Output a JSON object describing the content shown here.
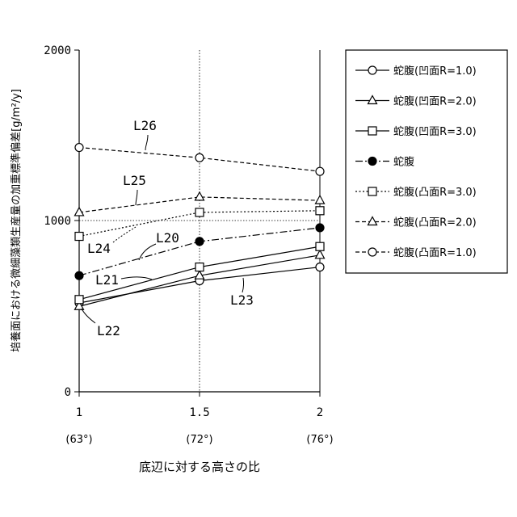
{
  "chart_data": {
    "type": "line",
    "xlabel": "底辺に対する高さの比",
    "ylabel": "培養面における微細藻類生産量の加重標準偏差[g/m²/y]",
    "x": [
      1,
      1.5,
      2
    ],
    "x_tick_labels": [
      "1",
      "1.5",
      "2"
    ],
    "x_sub_labels": [
      "(63°)",
      "(72°)",
      "(76°)"
    ],
    "y_ticks": [
      0,
      1000,
      2000
    ],
    "y_tick_labels": [
      "0",
      "1000",
      "2000"
    ],
    "xlim": [
      1,
      2
    ],
    "ylim": [
      0,
      2000
    ],
    "grid": {
      "vertical_at": 1.5,
      "horizontal_at": 1000
    },
    "legend_position": "right",
    "series": [
      {
        "name": "蛇腹(凹面R=1.0)",
        "marker": "circle-open",
        "line": "solid",
        "values": [
          520,
          650,
          730
        ]
      },
      {
        "name": "蛇腹(凹面R=2.0)",
        "marker": "triangle-open",
        "line": "solid",
        "values": [
          500,
          680,
          800
        ]
      },
      {
        "name": "蛇腹(凹面R=3.0)",
        "marker": "square-open",
        "line": "solid",
        "values": [
          540,
          730,
          850
        ]
      },
      {
        "name": "蛇腹",
        "marker": "circle-filled",
        "line": "dashdot",
        "values": [
          680,
          880,
          960
        ]
      },
      {
        "name": "蛇腹(凸面R=3.0)",
        "marker": "square-open",
        "line": "dotted",
        "values": [
          910,
          1050,
          1060
        ]
      },
      {
        "name": "蛇腹(凸面R=2.0)",
        "marker": "triangle-open",
        "line": "dashed",
        "values": [
          1050,
          1140,
          1120
        ]
      },
      {
        "name": "蛇腹(凸面R=1.0)",
        "marker": "circle-open",
        "line": "dashed",
        "values": [
          1430,
          1370,
          1290
        ]
      }
    ],
    "annotations": [
      {
        "text": "L20",
        "series": 3
      },
      {
        "text": "L21",
        "series": 2
      },
      {
        "text": "L22",
        "series": 1
      },
      {
        "text": "L23",
        "series": 0
      },
      {
        "text": "L24",
        "series": 4
      },
      {
        "text": "L25",
        "series": 5
      },
      {
        "text": "L26",
        "series": 6
      }
    ]
  }
}
